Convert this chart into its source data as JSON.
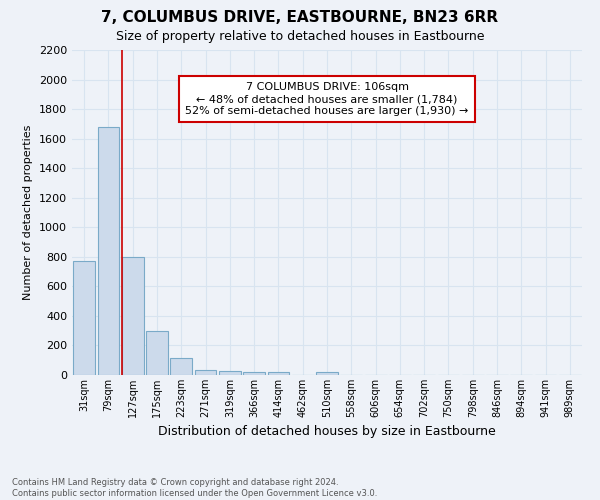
{
  "title": "7, COLUMBUS DRIVE, EASTBOURNE, BN23 6RR",
  "subtitle": "Size of property relative to detached houses in Eastbourne",
  "xlabel": "Distribution of detached houses by size in Eastbourne",
  "ylabel": "Number of detached properties",
  "categories": [
    "31sqm",
    "79sqm",
    "127sqm",
    "175sqm",
    "223sqm",
    "271sqm",
    "319sqm",
    "366sqm",
    "414sqm",
    "462sqm",
    "510sqm",
    "558sqm",
    "606sqm",
    "654sqm",
    "702sqm",
    "750sqm",
    "798sqm",
    "846sqm",
    "894sqm",
    "941sqm",
    "989sqm"
  ],
  "values": [
    770,
    1680,
    800,
    300,
    115,
    35,
    28,
    23,
    20,
    0,
    22,
    0,
    0,
    0,
    0,
    0,
    0,
    0,
    0,
    0,
    0
  ],
  "bar_color": "#ccdaeb",
  "bar_edge_color": "#7aaac8",
  "background_color": "#eef2f8",
  "grid_color": "#d8e4f0",
  "red_line_x": 1.55,
  "annotation_line1": "7 COLUMBUS DRIVE: 106sqm",
  "annotation_line2": "← 48% of detached houses are smaller (1,784)",
  "annotation_line3": "52% of semi-detached houses are larger (1,930) →",
  "annotation_box_color": "#ffffff",
  "annotation_box_edge": "#cc0000",
  "footnote": "Contains HM Land Registry data © Crown copyright and database right 2024.\nContains public sector information licensed under the Open Government Licence v3.0.",
  "ylim": [
    0,
    2200
  ],
  "yticks": [
    0,
    200,
    400,
    600,
    800,
    1000,
    1200,
    1400,
    1600,
    1800,
    2000,
    2200
  ]
}
